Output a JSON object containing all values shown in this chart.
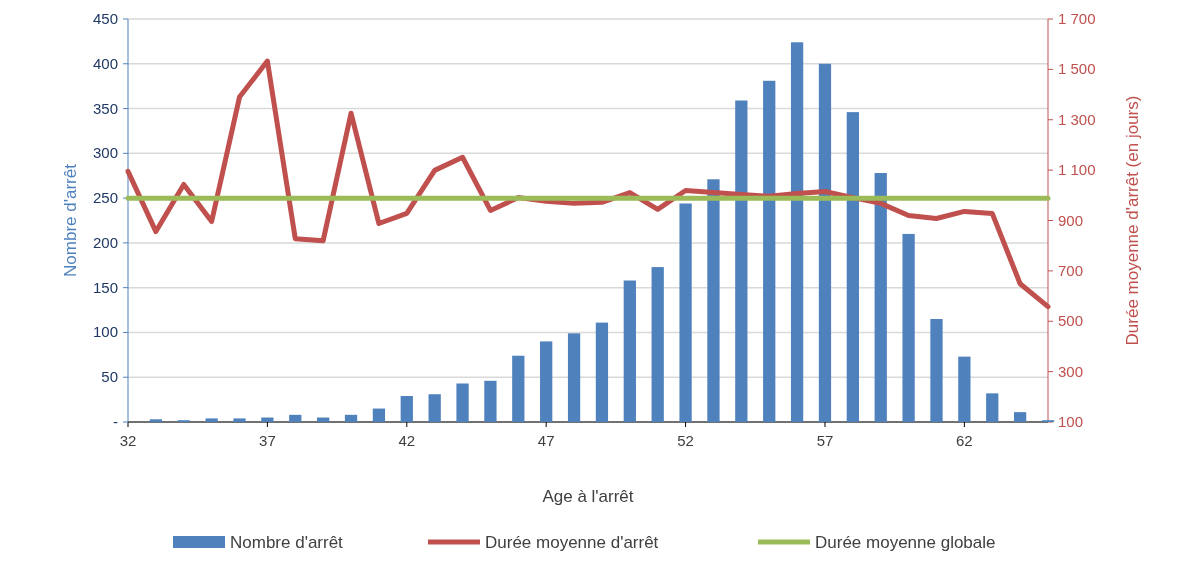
{
  "chart_data": {
    "type": "bar",
    "xlabel": "Age à l'arrêt",
    "ylabel": "Nombre d'arrêt",
    "y2label": "Durée moyenne d'arrêt (en jours)",
    "x": [
      32,
      33,
      34,
      35,
      36,
      37,
      38,
      39,
      40,
      41,
      42,
      43,
      44,
      45,
      46,
      47,
      48,
      49,
      50,
      51,
      52,
      53,
      54,
      55,
      56,
      57,
      58,
      59,
      60,
      61,
      62,
      63,
      64,
      65
    ],
    "series": [
      {
        "name": "Nombre d'arrêt",
        "color": "#4f81bd",
        "values": [
          null,
          3,
          2,
          4,
          4,
          5,
          8,
          5,
          8,
          15,
          29,
          31,
          43,
          46,
          74,
          90,
          99,
          111,
          158,
          173,
          244,
          271,
          359,
          381,
          424,
          400,
          346,
          278,
          210,
          115,
          73,
          32,
          11,
          2
        ]
      },
      {
        "name": "Durée moyenne d'arrêt",
        "type": "line",
        "axis": "y2",
        "color": "#c0504d",
        "values": [
          1095,
          856,
          1043,
          896,
          1390,
          1533,
          828,
          820,
          1326,
          888,
          928,
          1099,
          1151,
          940,
          991,
          976,
          968,
          972,
          1011,
          944,
          1019,
          1011,
          1003,
          996,
          1007,
          1015,
          991,
          968,
          920,
          908,
          936,
          928,
          649,
          558
        ]
      },
      {
        "name": "Durée moyenne globale",
        "type": "line",
        "axis": "y2",
        "color": "#9bbb59",
        "values": [
          988,
          988,
          988,
          988,
          988,
          988,
          988,
          988,
          988,
          988,
          988,
          988,
          988,
          988,
          988,
          988,
          988,
          988,
          988,
          988,
          988,
          988,
          988,
          988,
          988,
          988,
          988,
          988,
          988,
          988,
          988,
          988,
          988,
          988
        ]
      }
    ],
    "xlim": [
      32,
      65
    ],
    "xticks": [
      32,
      37,
      42,
      47,
      52,
      57,
      62
    ],
    "ylim": [
      0,
      450
    ],
    "yticks": [
      {
        "value": 0,
        "label": "-"
      },
      50,
      100,
      150,
      200,
      250,
      300,
      350,
      400,
      450
    ],
    "y2lim": [
      100,
      1700
    ],
    "y2ticks": [
      100,
      300,
      500,
      700,
      900,
      {
        "value": 1100,
        "label": "1 100"
      },
      {
        "value": 1300,
        "label": "1 300"
      },
      {
        "value": 1500,
        "label": "1 500"
      },
      {
        "value": 1700,
        "label": "1 700"
      }
    ],
    "grid": "y",
    "legend": "bottom",
    "marker": "none",
    "line_style": "solid"
  }
}
